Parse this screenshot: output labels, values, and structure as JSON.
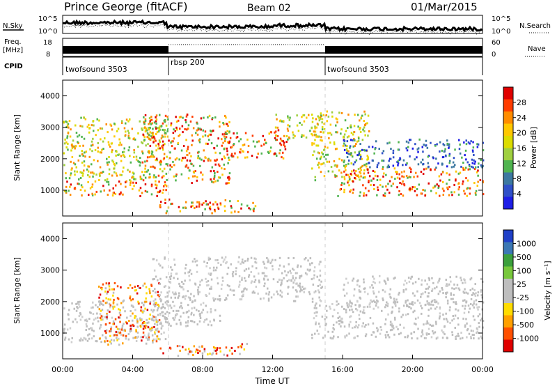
{
  "header": {
    "station": "Prince George (fitACF)",
    "beam": "Beam 02",
    "date": "01/Mar/2015"
  },
  "panel_nsky": {
    "left_label": "N.Sky",
    "right_label": "N.Search",
    "left_ticks": [
      "10^5",
      "10^0"
    ],
    "right_ticks": [
      "10^5",
      "10^0"
    ]
  },
  "panel_freq": {
    "left_label_1": "Freq.",
    "left_label_2": "[MHz]",
    "right_label": "Nave",
    "left_ticks": [
      "18",
      "8"
    ],
    "right_ticks": [
      "60",
      "0"
    ]
  },
  "panel_cpid": {
    "label": "CPID",
    "segments": [
      {
        "name": "twofsound 3503",
        "start_hour": 0,
        "end_hour": 6
      },
      {
        "name": "rbsp 200",
        "start_hour": 6,
        "end_hour": 15
      },
      {
        "name": "twofsound 3503",
        "start_hour": 15,
        "end_hour": 24
      }
    ]
  },
  "x_axis": {
    "label": "Time UT",
    "ticks": [
      "00:00",
      "04:00",
      "08:00",
      "12:00",
      "16:00",
      "20:00",
      "00:00"
    ]
  },
  "power_colorbar": {
    "label": "Power [dB]",
    "ticks": [
      "28",
      "24",
      "20",
      "16",
      "12",
      "8",
      "4"
    ],
    "colors": [
      "#e00000",
      "#ff3c00",
      "#ff8c00",
      "#ffc800",
      "#dcdc00",
      "#a0d040",
      "#50b450",
      "#3c78a0",
      "#3050c8",
      "#1e1ee6"
    ]
  },
  "velocity_colorbar": {
    "label": "Velocity [m s⁻¹]",
    "ticks": [
      "1000",
      "500",
      "100",
      "25",
      "-25",
      "-100",
      "-500",
      "-1000"
    ],
    "colors": [
      "#2040c8",
      "#3c78b4",
      "#3ca03c",
      "#78c83c",
      "#bebebe",
      "#bebebe",
      "#ffdc00",
      "#ffa000",
      "#ff5000",
      "#e00000"
    ]
  },
  "chart_data": [
    {
      "type": "heatmap",
      "title": "Power",
      "xlabel": "Time UT",
      "ylabel": "Slant Range [km]",
      "x_range_hours": [
        0,
        24
      ],
      "ylim": [
        180,
        4500
      ],
      "y_ticks": [
        "1000",
        "2000",
        "3000",
        "4000"
      ],
      "scale_label": "Power [dB]",
      "scale_ticks": [
        4,
        8,
        12,
        16,
        20,
        24,
        28
      ],
      "echo_bands": [
        {
          "t_start": 0.0,
          "t_end": 6.0,
          "range_low": 800,
          "range_high": 1300,
          "level": "high"
        },
        {
          "t_start": 0.0,
          "t_end": 6.0,
          "range_low": 1300,
          "range_high": 3300,
          "level": "medium"
        },
        {
          "t_start": 4.5,
          "t_end": 9.5,
          "range_low": 1200,
          "range_high": 3400,
          "level": "high"
        },
        {
          "t_start": 5.5,
          "t_end": 11.0,
          "range_low": 250,
          "range_high": 700,
          "level": "high"
        },
        {
          "t_start": 9.0,
          "t_end": 12.8,
          "range_low": 2000,
          "range_high": 2900,
          "level": "high"
        },
        {
          "t_start": 12.0,
          "t_end": 14.8,
          "range_low": 2600,
          "range_high": 3400,
          "level": "medium"
        },
        {
          "t_start": 14.2,
          "t_end": 17.5,
          "range_low": 1300,
          "range_high": 3500,
          "level": "medium"
        },
        {
          "t_start": 15.5,
          "t_end": 24.0,
          "range_low": 800,
          "range_high": 1700,
          "level": "high"
        },
        {
          "t_start": 16.0,
          "t_end": 24.0,
          "range_low": 1700,
          "range_high": 2600,
          "level": "low"
        }
      ]
    },
    {
      "type": "heatmap",
      "title": "Velocity",
      "xlabel": "Time UT",
      "ylabel": "Slant Range [km]",
      "x_range_hours": [
        0,
        24
      ],
      "ylim": [
        180,
        4500
      ],
      "y_ticks": [
        "1000",
        "2000",
        "3000",
        "4000"
      ],
      "scale_label": "Velocity [m s⁻¹]",
      "scale_ticks": [
        -1000,
        -500,
        -100,
        -25,
        25,
        100,
        500,
        1000
      ],
      "echo_bands": [
        {
          "t_start": 0.0,
          "t_end": 6.0,
          "range_low": 700,
          "range_high": 2000,
          "level": "ground"
        },
        {
          "t_start": 2.0,
          "t_end": 5.5,
          "range_low": 600,
          "range_high": 2600,
          "level": "negative"
        },
        {
          "t_start": 5.0,
          "t_end": 9.0,
          "range_low": 1200,
          "range_high": 3400,
          "level": "ground"
        },
        {
          "t_start": 5.5,
          "t_end": 10.5,
          "range_low": 250,
          "range_high": 650,
          "level": "negative"
        },
        {
          "t_start": 9.0,
          "t_end": 14.8,
          "range_low": 2000,
          "range_high": 3400,
          "level": "ground"
        },
        {
          "t_start": 14.2,
          "t_end": 24.0,
          "range_low": 800,
          "range_high": 2000,
          "level": "ground"
        },
        {
          "t_start": 16.0,
          "t_end": 24.0,
          "range_low": 1800,
          "range_high": 2800,
          "level": "ground"
        }
      ]
    }
  ]
}
